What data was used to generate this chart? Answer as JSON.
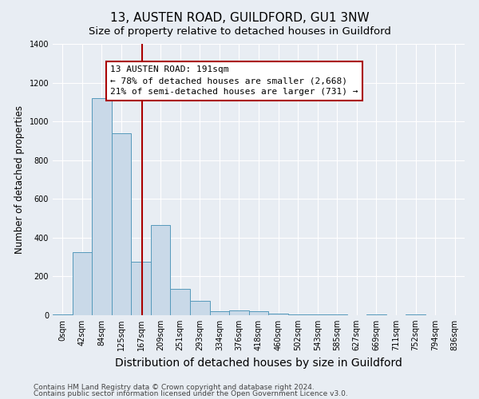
{
  "title": "13, AUSTEN ROAD, GUILDFORD, GU1 3NW",
  "subtitle": "Size of property relative to detached houses in Guildford",
  "xlabel": "Distribution of detached houses by size in Guildford",
  "ylabel": "Number of detached properties",
  "footnote1": "Contains HM Land Registry data © Crown copyright and database right 2024.",
  "footnote2": "Contains public sector information licensed under the Open Government Licence v3.0.",
  "bin_labels": [
    "0sqm",
    "42sqm",
    "84sqm",
    "125sqm",
    "167sqm",
    "209sqm",
    "251sqm",
    "293sqm",
    "334sqm",
    "376sqm",
    "418sqm",
    "460sqm",
    "502sqm",
    "543sqm",
    "585sqm",
    "627sqm",
    "669sqm",
    "711sqm",
    "752sqm",
    "794sqm",
    "836sqm"
  ],
  "bar_heights": [
    5,
    325,
    1120,
    940,
    275,
    465,
    135,
    75,
    20,
    25,
    20,
    10,
    5,
    5,
    5,
    0,
    5,
    0,
    5,
    0,
    0
  ],
  "bar_color": "#c9d9e8",
  "bar_edge_color": "#5599bb",
  "vline_color": "#aa0000",
  "annotation_text": "13 AUSTEN ROAD: 191sqm\n← 78% of detached houses are smaller (2,668)\n21% of semi-detached houses are larger (731) →",
  "annotation_box_color": "#ffffff",
  "annotation_box_edgecolor": "#aa0000",
  "ylim": [
    0,
    1400
  ],
  "yticks": [
    0,
    200,
    400,
    600,
    800,
    1000,
    1200,
    1400
  ],
  "background_color": "#e8edf3",
  "plot_background": "#e8edf3",
  "title_fontsize": 11,
  "subtitle_fontsize": 9.5,
  "xlabel_fontsize": 10,
  "ylabel_fontsize": 8.5,
  "tick_fontsize": 7,
  "annotation_fontsize": 8,
  "footnote_fontsize": 6.5
}
